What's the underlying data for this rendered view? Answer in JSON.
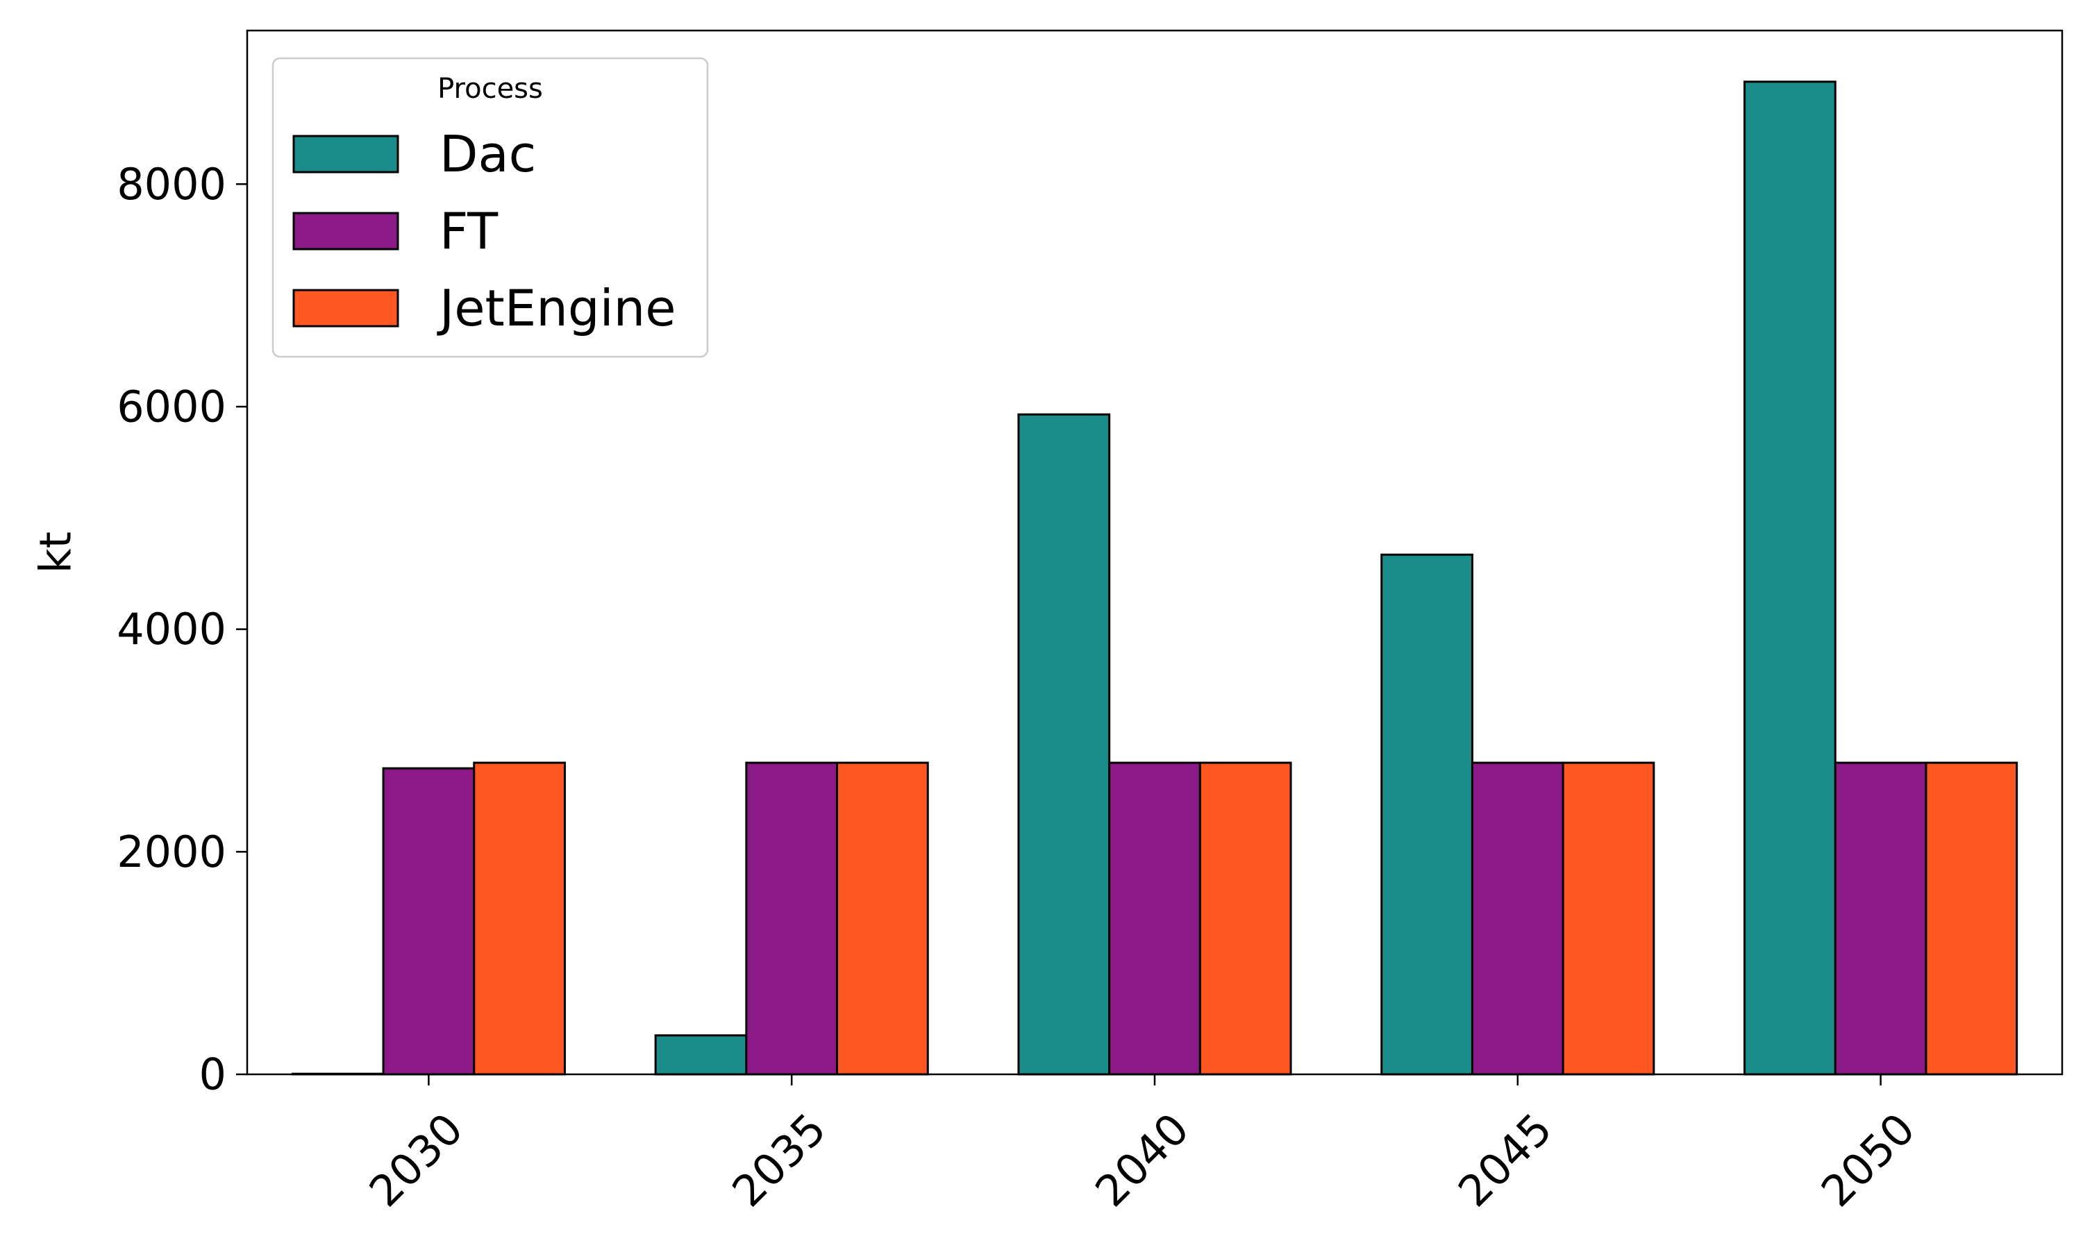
{
  "chart_data": {
    "type": "bar",
    "title": "",
    "xlabel": "",
    "ylabel": "kt",
    "categories": [
      "2030",
      "2035",
      "2040",
      "2045",
      "2050"
    ],
    "series": [
      {
        "name": "Dac",
        "color": "#1a8c8a",
        "values": [
          5,
          350,
          5930,
          4670,
          8920
        ]
      },
      {
        "name": "FT",
        "color": "#8b1a87",
        "values": [
          2750,
          2800,
          2800,
          2800,
          2800
        ]
      },
      {
        "name": "JetEngine",
        "color": "#ff5722",
        "values": [
          2800,
          2800,
          2800,
          2800,
          2800
        ]
      }
    ],
    "ylim": [
      0,
      9380
    ],
    "yticks": [
      0,
      2000,
      4000,
      6000,
      8000
    ],
    "legend": {
      "title": "Process",
      "position": "upper-left"
    },
    "grid": false,
    "xtick_rotation": 45,
    "bar_edge_color": "#000000"
  }
}
